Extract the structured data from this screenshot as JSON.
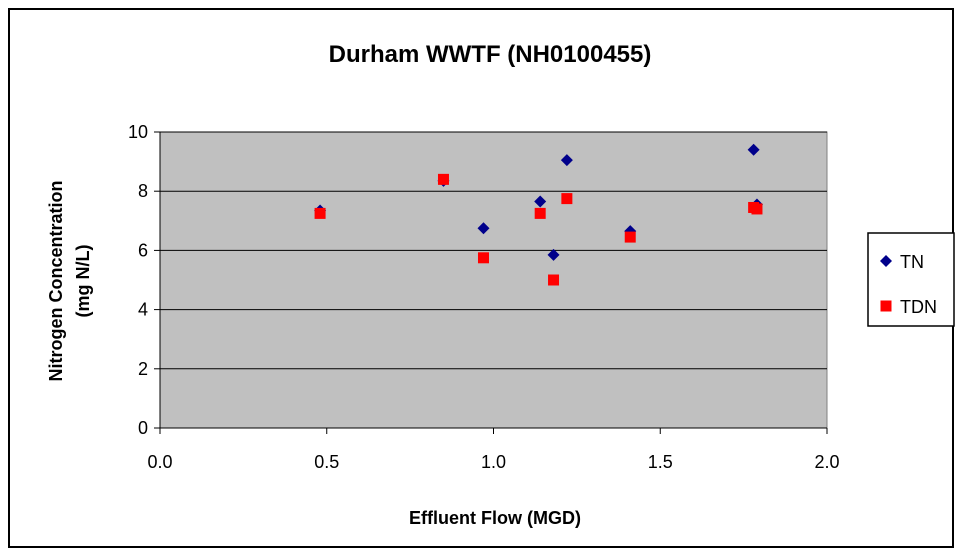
{
  "chart_data": {
    "type": "scatter",
    "title": "Durham WWTF (NH0100455)",
    "xlabel": "Effluent Flow (MGD)",
    "ylabel_line1": "Nitrogen Concentration",
    "ylabel_line2": "(mg N/L)",
    "xlim": [
      0,
      2
    ],
    "ylim": [
      0,
      10
    ],
    "x_ticks": [
      "0.0",
      "0.5",
      "1.0",
      "1.5",
      "2.0"
    ],
    "y_ticks": [
      "0",
      "2",
      "4",
      "6",
      "8",
      "10"
    ],
    "grid": true,
    "legend_position": "right",
    "series": [
      {
        "name": "TN",
        "marker": "diamond",
        "color": "#00008B",
        "points": [
          {
            "x": 0.48,
            "y": 7.35
          },
          {
            "x": 0.85,
            "y": 8.35
          },
          {
            "x": 0.97,
            "y": 6.75
          },
          {
            "x": 1.14,
            "y": 7.65
          },
          {
            "x": 1.18,
            "y": 5.85
          },
          {
            "x": 1.22,
            "y": 9.05
          },
          {
            "x": 1.41,
            "y": 6.65
          },
          {
            "x": 1.78,
            "y": 9.4
          },
          {
            "x": 1.79,
            "y": 7.55
          }
        ]
      },
      {
        "name": "TDN",
        "marker": "square",
        "color": "#FF0000",
        "points": [
          {
            "x": 0.48,
            "y": 7.25
          },
          {
            "x": 0.85,
            "y": 8.4
          },
          {
            "x": 0.97,
            "y": 5.75
          },
          {
            "x": 1.14,
            "y": 7.25
          },
          {
            "x": 1.18,
            "y": 5.0
          },
          {
            "x": 1.22,
            "y": 7.75
          },
          {
            "x": 1.41,
            "y": 6.45
          },
          {
            "x": 1.78,
            "y": 7.45
          },
          {
            "x": 1.79,
            "y": 7.4
          }
        ]
      }
    ],
    "colors": {
      "plot_background": "#C0C0C0",
      "gridline": "#000000"
    }
  }
}
